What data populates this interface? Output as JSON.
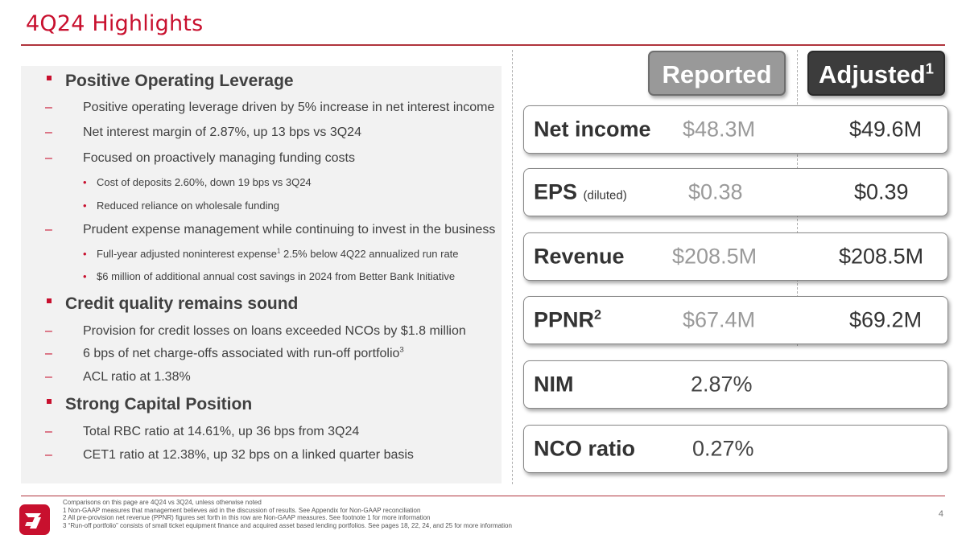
{
  "slide": {
    "title": "4Q24 Highlights",
    "page_number": "4"
  },
  "bullets": [
    {
      "level": 1,
      "text": "Positive Operating Leverage"
    },
    {
      "level": 2,
      "text": "Positive operating leverage driven by 5% increase in net interest income"
    },
    {
      "level": 2,
      "text": "Net interest margin of 2.87%, up 13 bps vs 3Q24"
    },
    {
      "level": 2,
      "text": "Focused on proactively managing funding costs"
    },
    {
      "level": 3,
      "text": "Cost of deposits 2.60%, down 19 bps vs 3Q24"
    },
    {
      "level": 3,
      "text": "Reduced reliance on wholesale funding"
    },
    {
      "level": 2,
      "text": "Prudent expense management while continuing to invest in the business"
    },
    {
      "level": 3,
      "text": "Full-year adjusted noninterest expense",
      "sup": "1",
      "after": " 2.5% below 4Q22 annualized run rate"
    },
    {
      "level": 3,
      "text": "$6 million of additional annual cost savings in 2024 from Better Bank Initiative"
    },
    {
      "level": 1,
      "text": "Credit quality remains sound"
    },
    {
      "level": 2,
      "text": "Provision for credit losses on loans exceeded NCOs by $1.8 million"
    },
    {
      "level": 2,
      "text": "6 bps of net charge-offs associated with run-off portfolio",
      "sup": "3"
    },
    {
      "level": 2,
      "text": "ACL ratio at 1.38%"
    },
    {
      "level": 1,
      "text": "Strong Capital Position"
    },
    {
      "level": 2,
      "text": "Total RBC ratio at 14.61%, up 36 bps from 3Q24"
    },
    {
      "level": 2,
      "text": "CET1 ratio at 12.38%, up 32 bps on a linked quarter basis"
    }
  ],
  "headers": {
    "reported": "Reported",
    "adjusted": "Adjusted",
    "adjusted_sup": "1"
  },
  "metrics": [
    {
      "label": "Net income",
      "reported": "$48.3M",
      "adjusted": "$49.6M"
    },
    {
      "label": "EPS",
      "label_small": "(diluted)",
      "reported": "$0.38",
      "adjusted": "$0.39"
    },
    {
      "label": "Revenue",
      "reported": "$208.5M",
      "adjusted": "$208.5M"
    },
    {
      "label": "PPNR",
      "label_sup": "2",
      "reported": "$67.4M",
      "adjusted": "$69.2M"
    },
    {
      "label": "NIM",
      "value": "2.87%"
    },
    {
      "label": "NCO ratio",
      "value": "0.27%"
    }
  ],
  "footnotes": [
    "Comparisons on this page are 4Q24 vs 3Q24, unless otherwise noted",
    "1   Non-GAAP measures that management believes aid in the discussion of results. See Appendix for Non-GAAP reconciliation",
    "2   All pre-provision net revenue (PPNR) figures set forth in this row are Non-GAAP measures. See footnote 1 for more information",
    "3   “Run-off portfolio” consists of small ticket equipment finance and acquired asset based lending portfolios.  See pages 18, 22, 24, and 25  for more information"
  ]
}
